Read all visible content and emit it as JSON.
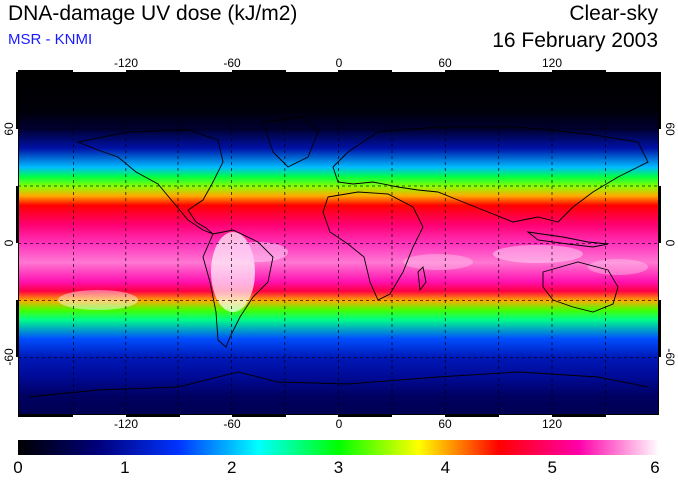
{
  "header": {
    "title": "DNA-damage UV dose (kJ/m2)",
    "subtitle": "MSR - KNMI",
    "product": "Clear-sky",
    "date": "16 February 2003"
  },
  "map": {
    "longitude_ticks": [
      "-120",
      "-60",
      "0",
      "60",
      "120"
    ],
    "latitude_ticks": [
      "60",
      "0",
      "-60"
    ],
    "grid": "dashed 30-degree graticule",
    "coastlines": true
  },
  "colorbar": {
    "tick_labels": [
      "0",
      "1",
      "2",
      "3",
      "4",
      "5",
      "6"
    ],
    "range": [
      0,
      6
    ],
    "colors": [
      "#000000",
      "#00007a",
      "#0033ff",
      "#00ffff",
      "#00ff00",
      "#ffff00",
      "#ff0000",
      "#ff00aa",
      "#ffffff"
    ]
  },
  "chart_data": {
    "type": "heatmap",
    "title": "DNA-damage UV dose (kJ/m2)",
    "xlabel": "",
    "ylabel": "",
    "xlim": [
      -180,
      180
    ],
    "ylim": [
      -90,
      90
    ],
    "x_ticks": [
      -120,
      -60,
      0,
      60,
      120
    ],
    "y_ticks": [
      60,
      0,
      -60
    ],
    "color_range": [
      0,
      6
    ],
    "zonal_profile": [
      {
        "lat": 90,
        "value": 0.0
      },
      {
        "lat": 70,
        "value": 0.05
      },
      {
        "lat": 60,
        "value": 0.3
      },
      {
        "lat": 50,
        "value": 1.0
      },
      {
        "lat": 40,
        "value": 2.0
      },
      {
        "lat": 35,
        "value": 2.8
      },
      {
        "lat": 30,
        "value": 3.4
      },
      {
        "lat": 25,
        "value": 4.0
      },
      {
        "lat": 20,
        "value": 4.5
      },
      {
        "lat": 10,
        "value": 5.0
      },
      {
        "lat": 0,
        "value": 5.4
      },
      {
        "lat": -10,
        "value": 5.6
      },
      {
        "lat": -20,
        "value": 5.3
      },
      {
        "lat": -25,
        "value": 4.8
      },
      {
        "lat": -30,
        "value": 4.0
      },
      {
        "lat": -35,
        "value": 3.2
      },
      {
        "lat": -40,
        "value": 2.6
      },
      {
        "lat": -50,
        "value": 1.6
      },
      {
        "lat": -60,
        "value": 1.1
      },
      {
        "lat": -70,
        "value": 0.9
      },
      {
        "lat": -80,
        "value": 0.6
      },
      {
        "lat": -90,
        "value": 0.5
      }
    ]
  }
}
